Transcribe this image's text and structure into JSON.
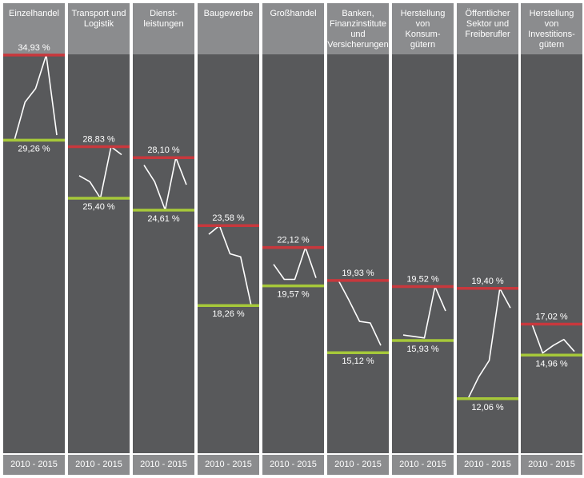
{
  "chart_data": {
    "type": "line",
    "period_label": "2010 - 2015",
    "colors": {
      "max_line": "#c8383d",
      "min_line": "#a6c83a",
      "series_line": "#ffffff",
      "panel_background": "#58595b",
      "header_background": "#8b8c8e"
    },
    "ylim": [
      10,
      37
    ],
    "panels": [
      {
        "title": "Einzelhandel",
        "max_label": "34,93 %",
        "min_label": "29,26 %",
        "max": 34.93,
        "min": 29.26,
        "values": [
          29.26,
          31.8,
          32.7,
          34.93,
          29.6
        ]
      },
      {
        "title": "Transport und\nLogistik",
        "max_label": "28,83 %",
        "min_label": "25,40 %",
        "max": 28.83,
        "min": 25.4,
        "values": [
          26.9,
          26.5,
          25.4,
          28.83,
          28.3
        ]
      },
      {
        "title": "Dienst-\nleistungen",
        "max_label": "28,10 %",
        "min_label": "24,61 %",
        "max": 28.1,
        "min": 24.61,
        "values": [
          27.6,
          26.5,
          24.61,
          28.1,
          26.3
        ]
      },
      {
        "title": "Baugewerbe",
        "max_label": "23,58 %",
        "min_label": "18,26 %",
        "max": 23.58,
        "min": 18.26,
        "values": [
          23.0,
          23.58,
          21.7,
          21.5,
          18.26
        ]
      },
      {
        "title": "Großhandel",
        "max_label": "22,12 %",
        "min_label": "19,57 %",
        "max": 22.12,
        "min": 19.57,
        "values": [
          21.0,
          20.0,
          20.0,
          22.12,
          20.1
        ]
      },
      {
        "title": "Banken,\nFinanzinstitute\nund\nVersicherungen",
        "max_label": "19,93 %",
        "min_label": "15,12 %",
        "max": 19.93,
        "min": 15.12,
        "values": [
          19.93,
          18.6,
          17.2,
          17.1,
          15.6
        ]
      },
      {
        "title": "Herstellung\nvon\nKonsum-\ngütern",
        "max_label": "19,52 %",
        "min_label": "15,93 %",
        "max": 19.52,
        "min": 15.93,
        "values": [
          16.3,
          16.2,
          16.1,
          19.52,
          17.9
        ]
      },
      {
        "title": "Öffentlicher\nSektor und\nFreiberufler",
        "max_label": "19,40 %",
        "min_label": "12,06 %",
        "max": 19.4,
        "min": 12.06,
        "values": [
          12.06,
          13.5,
          14.6,
          19.4,
          18.1
        ]
      },
      {
        "title": "Herstellung\nvon\nInvestitions-\ngütern",
        "max_label": "17,02 %",
        "min_label": "14,96 %",
        "max": 17.02,
        "min": 14.96,
        "values": [
          17.02,
          15.1,
          15.6,
          16.0,
          15.2
        ]
      }
    ]
  }
}
